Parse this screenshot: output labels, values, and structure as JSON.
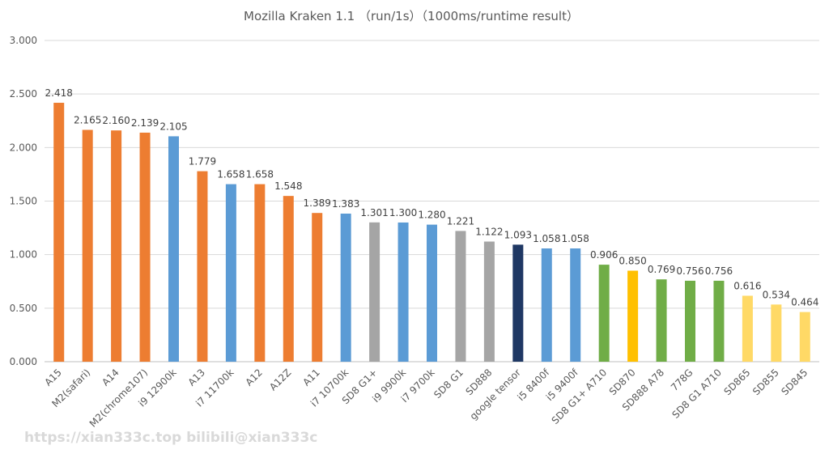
{
  "chart_data": {
    "type": "bar",
    "title": "Mozilla Kraken 1.1 （run/1s）（1000ms/runtime result）",
    "xlabel": "",
    "ylabel": "",
    "ylim": [
      0,
      3
    ],
    "yticks": [
      "0.000",
      "0.500",
      "1.000",
      "1.500",
      "2.000",
      "2.500",
      "3.000"
    ],
    "grid": true,
    "categories": [
      "A15",
      "M2(safari)",
      "A14",
      "M2(chrome107)",
      "i9 12900k",
      "A13",
      "i7 11700k",
      "A12",
      "A12Z",
      "A11",
      "i7 10700k",
      "SD8 G1+",
      "i9 9900k",
      "i7 9700k",
      "SD8 G1",
      "SD888",
      "google tensor",
      "i5 8400f",
      "i5 9400f",
      "SD8 G1+ A710",
      "SD870",
      "SD888 A78",
      "778G",
      "SD8 G1 A710",
      "SD865",
      "SD855",
      "SD845"
    ],
    "values": [
      2.418,
      2.165,
      2.16,
      2.139,
      2.105,
      1.779,
      1.658,
      1.658,
      1.548,
      1.389,
      1.383,
      1.301,
      1.3,
      1.28,
      1.221,
      1.122,
      1.093,
      1.058,
      1.058,
      0.906,
      0.85,
      0.769,
      0.756,
      0.756,
      0.616,
      0.534,
      0.464
    ],
    "labels": [
      "2.418",
      "2.165",
      "2.160",
      "2.139",
      "2.105",
      "1.779",
      "1.658",
      "1.658",
      "1.548",
      "1.389",
      "1.383",
      "1.301",
      "1.300",
      "1.280",
      "1.221",
      "1.122",
      "1.093",
      "1.058",
      "1.058",
      "0.906",
      "0.850",
      "0.769",
      "0.756",
      "0.756",
      "0.616",
      "0.534",
      "0.464"
    ],
    "colors": [
      "#ED7D31",
      "#ED7D31",
      "#ED7D31",
      "#ED7D31",
      "#5B9BD5",
      "#ED7D31",
      "#5B9BD5",
      "#ED7D31",
      "#ED7D31",
      "#ED7D31",
      "#5B9BD5",
      "#A5A5A5",
      "#5B9BD5",
      "#5B9BD5",
      "#A5A5A5",
      "#A5A5A5",
      "#1F3864",
      "#5B9BD5",
      "#5B9BD5",
      "#70AD47",
      "#FFC000",
      "#70AD47",
      "#70AD47",
      "#70AD47",
      "#FFD966",
      "#FFD966",
      "#FFD966"
    ]
  },
  "watermark": "https://xian333c.top  bilibili@xian333c"
}
